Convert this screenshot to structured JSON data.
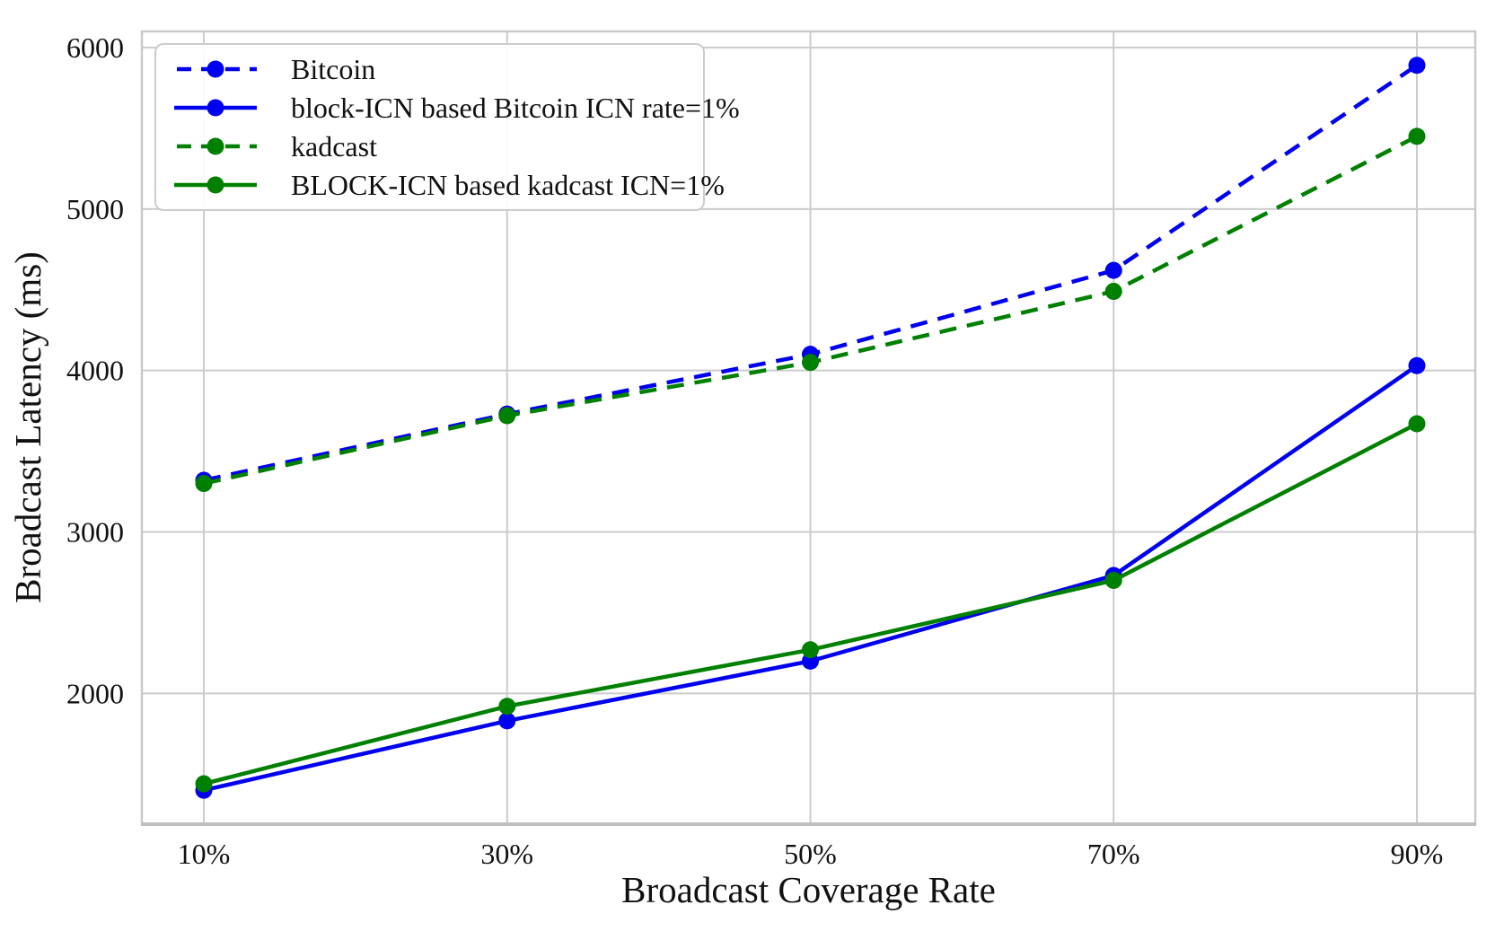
{
  "chart_data": {
    "type": "line",
    "title": "",
    "xlabel": "Broadcast Coverage Rate",
    "ylabel": "Broadcast Latency (ms)",
    "categories": [
      "10%",
      "30%",
      "50%",
      "70%",
      "90%"
    ],
    "x_numeric": [
      10,
      30,
      50,
      70,
      90
    ],
    "yticks": [
      2000,
      3000,
      4000,
      5000,
      6000
    ],
    "ytick_labels": [
      "2000",
      "3000",
      "4000",
      "5000",
      "6000"
    ],
    "ylim": [
      1190,
      6100
    ],
    "grid": true,
    "legend_position": "upper-left",
    "series": [
      {
        "name": "Bitcoin",
        "color": "#0000ee",
        "line_style": "dashed",
        "marker": "circle",
        "values": [
          3320,
          3730,
          4100,
          4620,
          5890
        ]
      },
      {
        "name": "block-ICN based Bitcoin ICN rate=1%",
        "color": "#0000ee",
        "line_style": "solid",
        "marker": "circle",
        "values": [
          1400,
          1830,
          2200,
          2730,
          4030
        ]
      },
      {
        "name": "kadcast",
        "color": "#008000",
        "line_style": "dashed",
        "marker": "circle",
        "values": [
          3300,
          3720,
          4050,
          4490,
          5450
        ]
      },
      {
        "name": "BLOCK-ICN based kadcast ICN=1%",
        "color": "#008000",
        "line_style": "solid",
        "marker": "circle",
        "values": [
          1440,
          1920,
          2270,
          2700,
          3670
        ]
      }
    ],
    "colors": {
      "grid": "#cccccc",
      "spine": "#c9c9c9",
      "bottom_spine": "#c0c0c0",
      "text": "#111111",
      "background": "#ffffff"
    }
  }
}
